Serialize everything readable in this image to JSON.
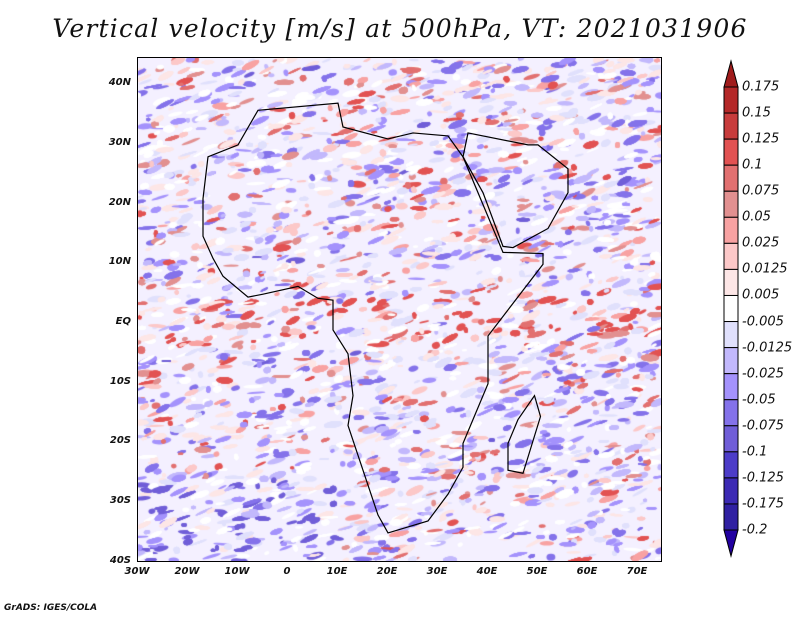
{
  "title": "Vertical velocity [m/s] at 500hPa, VT: 2021031906",
  "map": {
    "variable": "Vertical velocity",
    "units": "m/s",
    "level": "500hPa",
    "valid_time": "2021031906",
    "lat_labels": [
      "40N",
      "30N",
      "20N",
      "10N",
      "EQ",
      "10S",
      "20S",
      "30S",
      "40S"
    ],
    "lat_values": [
      40,
      30,
      20,
      10,
      0,
      -10,
      -20,
      -30,
      -40
    ],
    "lon_labels": [
      "30W",
      "20W",
      "10W",
      "0",
      "10E",
      "20E",
      "30E",
      "40E",
      "50E",
      "60E",
      "70E"
    ],
    "lon_values": [
      -30,
      -20,
      -10,
      0,
      10,
      20,
      30,
      40,
      50,
      60,
      70
    ]
  },
  "colorbar": {
    "labels": [
      "0.175",
      "0.15",
      "0.125",
      "0.1",
      "0.075",
      "0.05",
      "0.025",
      "0.0125",
      "0.005",
      "-0.005",
      "-0.0125",
      "-0.025",
      "-0.05",
      "-0.075",
      "-0.1",
      "-0.125",
      "-0.175",
      "-0.2"
    ],
    "top_triangle_color": "#a01c1c",
    "bottom_triangle_color": "#2200a0",
    "colors": [
      "#b42828",
      "#c83c3c",
      "#e25252",
      "#e27070",
      "#e29090",
      "#f8a2a2",
      "#fcc8c8",
      "#fde6e6",
      "#ffffff",
      "#e0e0fc",
      "#c2b8fc",
      "#a492fc",
      "#8472ea",
      "#705ed8",
      "#4c3cc8",
      "#3c2ab4",
      "#3020a2"
    ]
  },
  "credit": "GrADS: IGES/COLA"
}
